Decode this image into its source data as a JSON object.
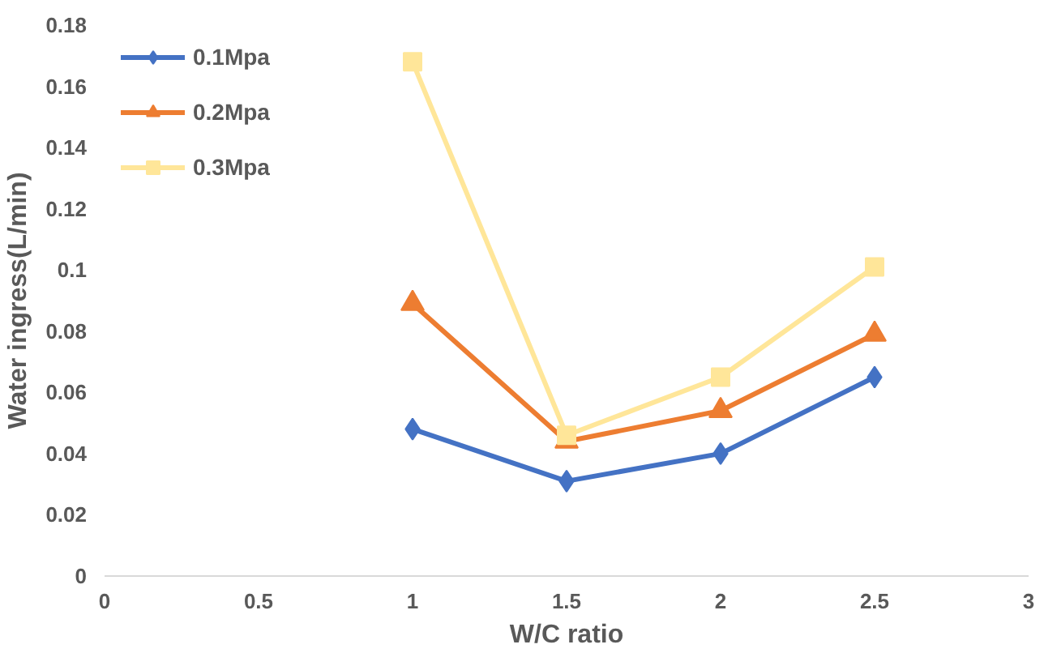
{
  "chart_data": {
    "type": "line",
    "xlabel": "W/C ratio",
    "ylabel": "Water ingress(L/min)",
    "x": [
      1,
      1.5,
      2,
      2.5
    ],
    "series": [
      {
        "name": "0.1Mpa",
        "color": "#4472c4",
        "marker": "diamond",
        "values": [
          0.048,
          0.031,
          0.04,
          0.065
        ]
      },
      {
        "name": "0.2Mpa",
        "color": "#ed7d31",
        "marker": "triangle",
        "values": [
          0.089,
          0.044,
          0.054,
          0.079
        ]
      },
      {
        "name": "0.3Mpa",
        "color": "#ffe699",
        "marker": "square",
        "values": [
          0.168,
          0.046,
          0.065,
          0.101
        ]
      }
    ],
    "xlim": [
      0,
      3
    ],
    "xticks": [
      0,
      0.5,
      1,
      1.5,
      2,
      2.5,
      3
    ],
    "ylim": [
      0,
      0.18
    ],
    "yticks": [
      0,
      0.02,
      0.04,
      0.06,
      0.08,
      0.1,
      0.12,
      0.14,
      0.16,
      0.18
    ],
    "grid": false,
    "legend": "top left",
    "line_style": "solid"
  }
}
